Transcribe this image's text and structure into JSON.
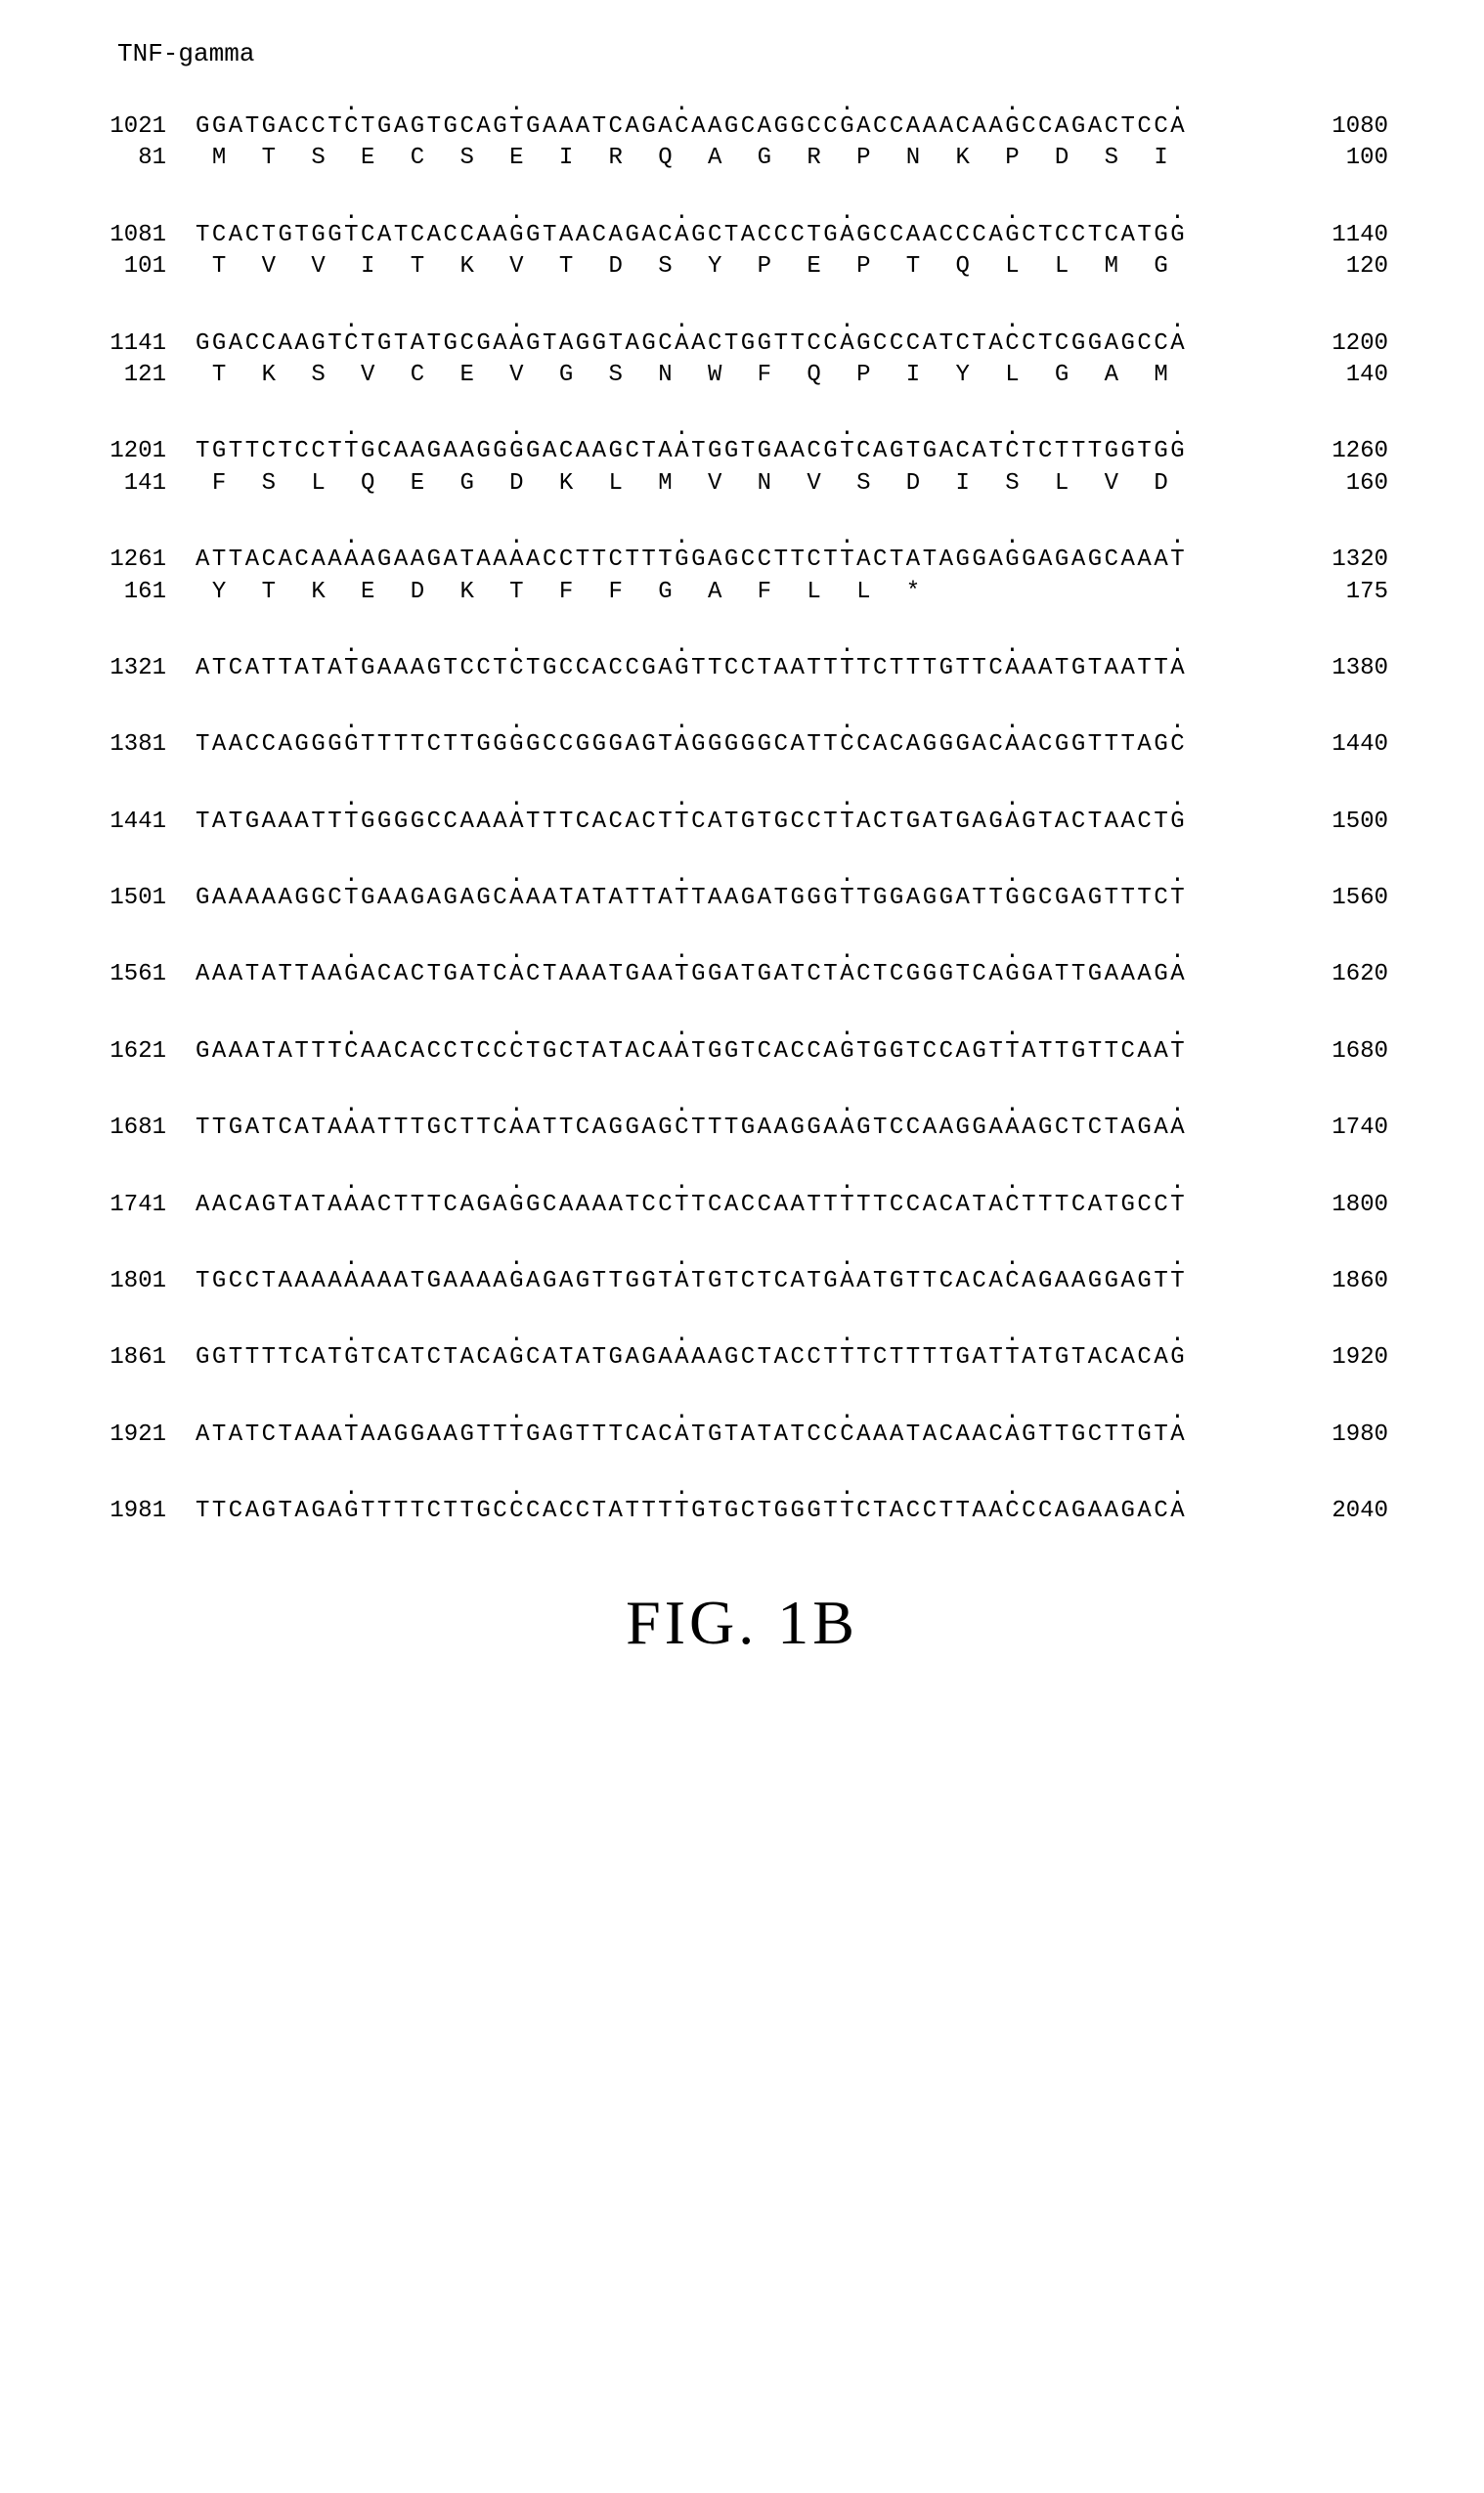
{
  "header": "TNF-gamma",
  "figure_label": "FIG. 1B",
  "tick_spacing": 10,
  "rows": [
    {
      "nt_start": 1021,
      "nt_end": 1080,
      "nt": "GGATGACCTCTGAGTGCAGTGAAATCAGACAAGCAGGCCGACCAAACAAGCCAGACTCCA",
      "aa_start": 81,
      "aa_end": 100,
      "aa": " M  T  S  E  C  S  E  I  R  Q  A  G  R  P  N  K  P  D  S  I "
    },
    {
      "nt_start": 1081,
      "nt_end": 1140,
      "nt": "TCACTGTGGTCATCACCAAGGTAACAGACAGCTACCCTGAGCCAACCCAGCTCCTCATGG",
      "aa_start": 101,
      "aa_end": 120,
      "aa": " T  V  V  I  T  K  V  T  D  S  Y  P  E  P  T  Q  L  L  M  G "
    },
    {
      "nt_start": 1141,
      "nt_end": 1200,
      "nt": "GGACCAAGTCTGTATGCGAAGTAGGTAGCAACTGGTTCCAGCCCATCTACCTCGGAGCCA",
      "aa_start": 121,
      "aa_end": 140,
      "aa": " T  K  S  V  C  E  V  G  S  N  W  F  Q  P  I  Y  L  G  A  M "
    },
    {
      "nt_start": 1201,
      "nt_end": 1260,
      "nt": "TGTTCTCCTTGCAAGAAGGGGACAAGCTAATGGTGAACGTCAGTGACATCTCTTTGGTGG",
      "aa_start": 141,
      "aa_end": 160,
      "aa": " F  S  L  Q  E  G  D  K  L  M  V  N  V  S  D  I  S  L  V  D "
    },
    {
      "nt_start": 1261,
      "nt_end": 1320,
      "nt": "ATTACACAAAAGAAGATAAAACCTTCTTTGGAGCCTTCTTACTATAGGAGGAGAGCAAAT",
      "aa_start": 161,
      "aa_end": 175,
      "aa": " Y  T  K  E  D  K  T  F  F  G  A  F  L  L  *               "
    },
    {
      "nt_start": 1321,
      "nt_end": 1380,
      "nt": "ATCATTATATGAAAGTCCTCTGCCACCGAGTTCCTAATTTTCTTTGTTCAAATGTAATTA"
    },
    {
      "nt_start": 1381,
      "nt_end": 1440,
      "nt": "TAACCAGGGGTTTTCTTGGGGCCGGGAGTAGGGGGCATTCCACAGGGACAACGGTTTAGC"
    },
    {
      "nt_start": 1441,
      "nt_end": 1500,
      "nt": "TATGAAATTTGGGGCCAAAATTTCACACTTCATGTGCCTTACTGATGAGAGTACTAACTG"
    },
    {
      "nt_start": 1501,
      "nt_end": 1560,
      "nt": "GAAAAAGGCTGAAGAGAGCAAATATATTATTAAGATGGGTTGGAGGATTGGCGAGTTTCT"
    },
    {
      "nt_start": 1561,
      "nt_end": 1620,
      "nt": "AAATATTAAGACACTGATCACTAAATGAATGGATGATCTACTCGGGTCAGGATTGAAAGA"
    },
    {
      "nt_start": 1621,
      "nt_end": 1680,
      "nt": "GAAATATTTCAACACCTCCCTGCTATACAATGGTCACCAGTGGTCCAGTTATTGTTCAAT"
    },
    {
      "nt_start": 1681,
      "nt_end": 1740,
      "nt": "TTGATCATAAATTTGCTTCAATTCAGGAGCTTTGAAGGAAGTCCAAGGAAAGCTCTAGAA"
    },
    {
      "nt_start": 1741,
      "nt_end": 1800,
      "nt": "AACAGTATAAACTTTCAGAGGCAAAATCCTTCACCAATTTTTCCACATACTTTCATGCCT"
    },
    {
      "nt_start": 1801,
      "nt_end": 1860,
      "nt": "TGCCTAAAAAAAATGAAAAGAGAGTTGGTATGTCTCATGAATGTTCACACAGAAGGAGTT"
    },
    {
      "nt_start": 1861,
      "nt_end": 1920,
      "nt": "GGTTTTCATGTCATCTACAGCATATGAGAAAAGCTACCTTTCTTTTGATTATGTACACAG"
    },
    {
      "nt_start": 1921,
      "nt_end": 1980,
      "nt": "ATATCTAAATAAGGAAGTTTGAGTTTCACATGTATATCCCAAATACAACAGTTGCTTGTA"
    },
    {
      "nt_start": 1981,
      "nt_end": 2040,
      "nt": "TTCAGTAGAGTTTTCTTGCCCACCTATTTTGTGCTGGGTTCTACCTTAACCCAGAAGACA"
    }
  ]
}
